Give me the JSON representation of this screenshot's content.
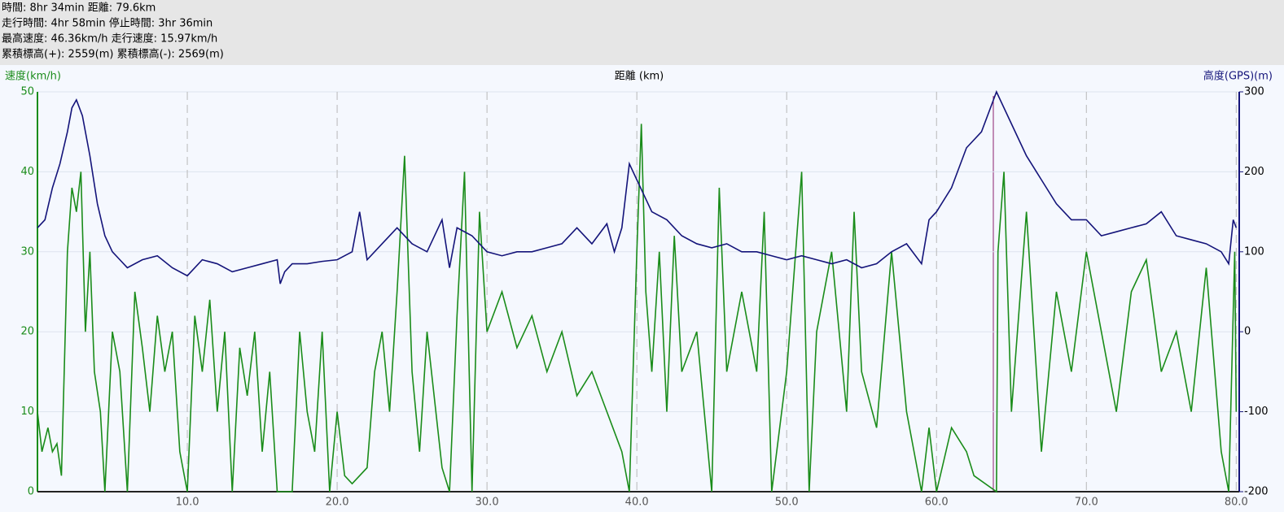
{
  "stats": [
    "時間: 8hr 34min 距離: 79.6km",
    "走行時間: 4hr 58min 停止時間: 3hr 36min",
    "最高速度: 46.36km/h 走行速度: 15.97km/h",
    "累積標高(+): 2559(m) 累積標高(-): 2569(m)"
  ],
  "chart_data": {
    "type": "line",
    "x_label": "距離 (km)",
    "y_label": "速度(km/h)",
    "y2_label": "高度(GPS)(m)",
    "xlim": [
      0,
      80.2
    ],
    "ylim": [
      0,
      50
    ],
    "y2lim": [
      -200,
      300
    ],
    "xticks": [
      {
        "value": 10,
        "label": "10.0"
      },
      {
        "value": 20,
        "label": "20.0"
      },
      {
        "value": 30,
        "label": "30.0"
      },
      {
        "value": 40,
        "label": "40.0"
      },
      {
        "value": 50,
        "label": "50.0"
      },
      {
        "value": 60,
        "label": "60.0"
      },
      {
        "value": 70,
        "label": "70.0"
      },
      {
        "value": 80,
        "label": "80.0"
      }
    ],
    "yticks": [
      0,
      10,
      20,
      30,
      40,
      50
    ],
    "y2ticks": [
      -200,
      -100,
      0,
      100,
      200,
      300
    ],
    "grid": true,
    "series": [
      {
        "color": "#1a8c1a",
        "axis": "y",
        "x": [
          0,
          0.3,
          0.7,
          1,
          1.3,
          1.6,
          2,
          2.3,
          2.6,
          2.9,
          3.2,
          3.5,
          3.8,
          4.2,
          4.5,
          5,
          5.5,
          6,
          6.5,
          7,
          7.5,
          8,
          8.5,
          9,
          9.5,
          10,
          10.5,
          11,
          11.5,
          12,
          12.5,
          13,
          13.5,
          14,
          14.5,
          15,
          15.5,
          16,
          17,
          17.5,
          18,
          18.5,
          19,
          19.5,
          20,
          20.5,
          21,
          22,
          22.5,
          23,
          23.5,
          24,
          24.5,
          25,
          25.5,
          26,
          27,
          27.5,
          28,
          28.5,
          29,
          29.5,
          30,
          31,
          32,
          33,
          34,
          35,
          36,
          37,
          38,
          39,
          39.5,
          40,
          40.3,
          40.6,
          41,
          41.5,
          42,
          42.5,
          43,
          44,
          45,
          45.5,
          46,
          47,
          48,
          48.5,
          49,
          50,
          51,
          51.5,
          52,
          53,
          54,
          54.5,
          55,
          56,
          57,
          58,
          59,
          59.5,
          60,
          61,
          62,
          62.5,
          64,
          64.1,
          64.5,
          65,
          66,
          67,
          68,
          69,
          70,
          71,
          72,
          73,
          74,
          75,
          76,
          77,
          78,
          79,
          79.5,
          79.9,
          80
        ],
        "values": [
          10,
          5,
          8,
          5,
          6,
          2,
          30,
          38,
          35,
          40,
          20,
          30,
          15,
          10,
          0,
          20,
          15,
          0,
          25,
          18,
          10,
          22,
          15,
          20,
          5,
          0,
          22,
          15,
          24,
          10,
          20,
          0,
          18,
          12,
          20,
          5,
          15,
          0,
          0,
          20,
          10,
          5,
          20,
          0,
          10,
          2,
          1,
          3,
          15,
          20,
          10,
          25,
          42,
          15,
          5,
          20,
          3,
          0,
          22,
          40,
          0,
          35,
          20,
          25,
          18,
          22,
          15,
          20,
          12,
          15,
          10,
          5,
          0,
          30,
          46,
          25,
          15,
          30,
          10,
          32,
          15,
          20,
          0,
          38,
          15,
          25,
          15,
          35,
          0,
          15,
          40,
          0,
          20,
          30,
          10,
          35,
          15,
          8,
          30,
          10,
          0,
          8,
          0,
          8,
          5,
          2,
          0,
          30,
          40,
          10,
          35,
          5,
          25,
          15,
          30,
          20,
          10,
          25,
          29,
          15,
          20,
          10,
          28,
          5,
          0,
          30,
          10
        ]
      },
      {
        "color": "#14147a",
        "axis": "y2",
        "x": [
          0,
          0.5,
          1,
          1.5,
          2,
          2.3,
          2.6,
          3,
          3.5,
          4,
          4.5,
          5,
          5.5,
          6,
          7,
          8,
          9,
          10,
          11,
          12,
          13,
          14,
          15,
          16,
          16.2,
          16.5,
          17,
          18,
          19,
          20,
          20.5,
          21,
          21.5,
          22,
          23,
          24,
          25,
          26,
          27,
          27.5,
          28,
          29,
          30,
          31,
          32,
          33,
          34,
          35,
          36,
          37,
          38,
          38.5,
          39,
          39.5,
          40,
          40.5,
          41,
          42,
          43,
          44,
          45,
          46,
          47,
          48,
          49,
          50,
          51,
          52,
          53,
          54,
          55,
          56,
          57,
          58,
          59,
          59.5,
          60,
          61,
          62,
          63,
          64,
          65,
          66,
          67,
          68,
          69,
          70,
          71,
          72,
          73,
          74,
          75,
          76,
          77,
          78,
          79,
          79.5,
          79.8,
          80
        ],
        "values": [
          130,
          140,
          180,
          210,
          250,
          280,
          290,
          270,
          220,
          160,
          120,
          100,
          90,
          80,
          90,
          95,
          80,
          70,
          90,
          85,
          75,
          80,
          85,
          90,
          60,
          75,
          85,
          85,
          88,
          90,
          95,
          100,
          150,
          90,
          110,
          130,
          110,
          100,
          140,
          80,
          130,
          120,
          100,
          95,
          100,
          100,
          105,
          110,
          130,
          110,
          135,
          100,
          130,
          210,
          190,
          170,
          150,
          140,
          120,
          110,
          105,
          110,
          100,
          100,
          95,
          90,
          95,
          90,
          85,
          90,
          80,
          85,
          100,
          110,
          85,
          140,
          150,
          180,
          230,
          250,
          300,
          260,
          220,
          190,
          160,
          140,
          140,
          120,
          125,
          130,
          135,
          150,
          120,
          115,
          110,
          100,
          85,
          140,
          130
        ]
      }
    ]
  }
}
